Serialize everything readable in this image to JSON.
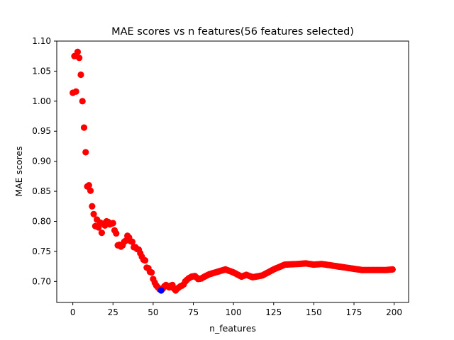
{
  "chart_data": {
    "type": "scatter",
    "title": "MAE scores vs n features(56 features selected)",
    "xlabel": "n_features",
    "ylabel": "MAE scores",
    "xlim": [
      -10,
      209
    ],
    "ylim": [
      0.665,
      1.1
    ],
    "x_ticks": [
      0,
      25,
      50,
      75,
      100,
      125,
      150,
      175,
      200
    ],
    "y_ticks": [
      0.7,
      0.75,
      0.8,
      0.85,
      0.9,
      0.95,
      1.0,
      1.05,
      1.1
    ],
    "y_tick_labels": [
      "0.70",
      "0.75",
      "0.80",
      "0.85",
      "0.90",
      "0.95",
      "1.00",
      "1.05",
      "1.10"
    ],
    "grid": false,
    "legend": "none",
    "colors": {
      "points": "#ff0000",
      "highlight": "#0000ff"
    },
    "highlight": {
      "x": 55,
      "y": 0.685
    },
    "anchors": [
      [
        0,
        1.014
      ],
      [
        1,
        1.075
      ],
      [
        2,
        1.016
      ],
      [
        3,
        1.082
      ],
      [
        4,
        1.072
      ],
      [
        5,
        1.044
      ],
      [
        6,
        1.0
      ],
      [
        7,
        0.956
      ],
      [
        8,
        0.915
      ],
      [
        9,
        0.858
      ],
      [
        10,
        0.86
      ],
      [
        11,
        0.851
      ],
      [
        12,
        0.825
      ],
      [
        13,
        0.812
      ],
      [
        14,
        0.792
      ],
      [
        15,
        0.803
      ],
      [
        16,
        0.79
      ],
      [
        17,
        0.798
      ],
      [
        18,
        0.781
      ],
      [
        19,
        0.796
      ],
      [
        20,
        0.793
      ],
      [
        21,
        0.8
      ],
      [
        22,
        0.799
      ],
      [
        23,
        0.795
      ],
      [
        24,
        0.796
      ],
      [
        25,
        0.797
      ],
      [
        26,
        0.785
      ],
      [
        27,
        0.78
      ],
      [
        28,
        0.76
      ],
      [
        29,
        0.761
      ],
      [
        30,
        0.758
      ],
      [
        31,
        0.76
      ],
      [
        32,
        0.766
      ],
      [
        33,
        0.768
      ],
      [
        34,
        0.776
      ],
      [
        35,
        0.773
      ],
      [
        36,
        0.767
      ],
      [
        37,
        0.766
      ],
      [
        38,
        0.757
      ],
      [
        39,
        0.757
      ],
      [
        40,
        0.754
      ],
      [
        41,
        0.753
      ],
      [
        42,
        0.747
      ],
      [
        43,
        0.741
      ],
      [
        44,
        0.736
      ],
      [
        45,
        0.735
      ],
      [
        46,
        0.723
      ],
      [
        47,
        0.722
      ],
      [
        48,
        0.716
      ],
      [
        49,
        0.715
      ],
      [
        50,
        0.704
      ],
      [
        51,
        0.698
      ],
      [
        52,
        0.693
      ],
      [
        53,
        0.69
      ],
      [
        54,
        0.687
      ],
      [
        55,
        0.685
      ],
      [
        56,
        0.688
      ],
      [
        57,
        0.692
      ],
      [
        58,
        0.694
      ],
      [
        59,
        0.692
      ],
      [
        60,
        0.69
      ],
      [
        61,
        0.693
      ],
      [
        62,
        0.694
      ],
      [
        63,
        0.688
      ],
      [
        64,
        0.685
      ],
      [
        65,
        0.688
      ],
      [
        66,
        0.69
      ],
      [
        67,
        0.692
      ],
      [
        68,
        0.693
      ],
      [
        69,
        0.695
      ],
      [
        70,
        0.7
      ],
      [
        72,
        0.705
      ],
      [
        74,
        0.708
      ],
      [
        76,
        0.709
      ],
      [
        78,
        0.704
      ],
      [
        80,
        0.705
      ],
      [
        82,
        0.708
      ],
      [
        85,
        0.712
      ],
      [
        90,
        0.716
      ],
      [
        95,
        0.72
      ],
      [
        100,
        0.715
      ],
      [
        105,
        0.708
      ],
      [
        108,
        0.711
      ],
      [
        112,
        0.707
      ],
      [
        118,
        0.71
      ],
      [
        125,
        0.72
      ],
      [
        132,
        0.728
      ],
      [
        140,
        0.729
      ],
      [
        145,
        0.73
      ],
      [
        150,
        0.728
      ],
      [
        155,
        0.729
      ],
      [
        160,
        0.727
      ],
      [
        165,
        0.725
      ],
      [
        170,
        0.723
      ],
      [
        175,
        0.721
      ],
      [
        180,
        0.719
      ],
      [
        185,
        0.719
      ],
      [
        190,
        0.719
      ],
      [
        195,
        0.719
      ],
      [
        199,
        0.72
      ]
    ]
  }
}
